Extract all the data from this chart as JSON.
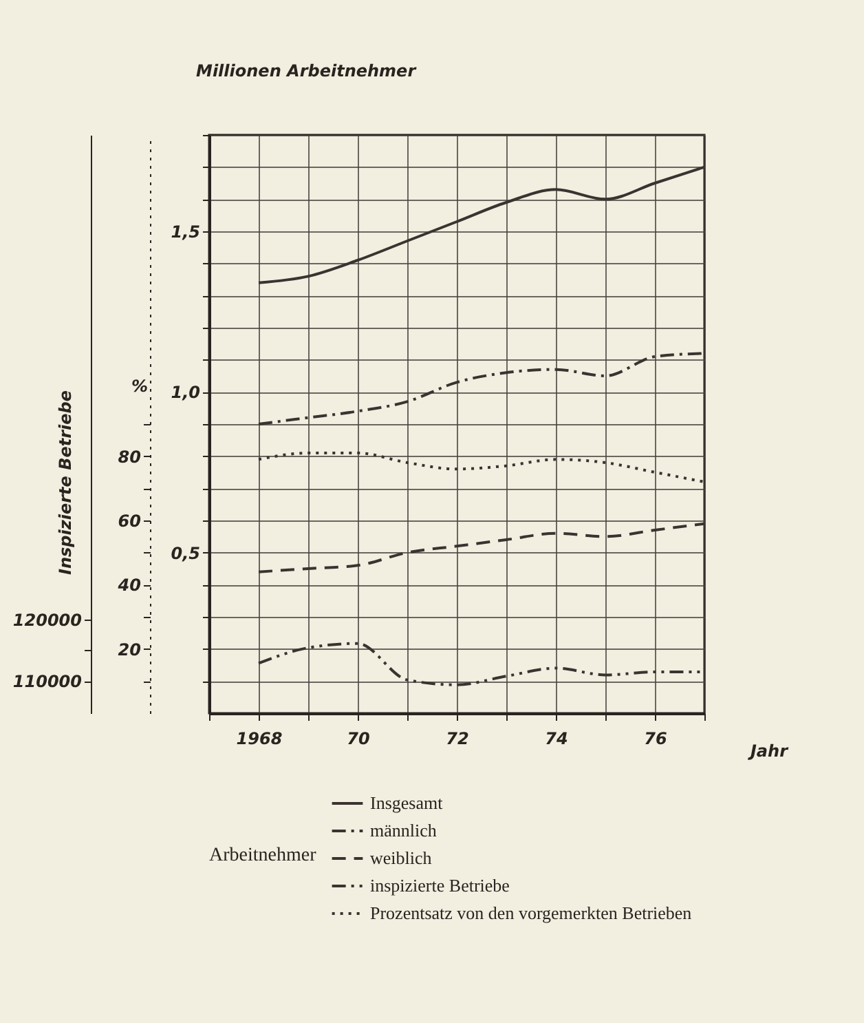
{
  "chart_data": {
    "type": "line",
    "xlabel": "Jahr",
    "ylabel": "Millionen Arbeitnehmer",
    "y2label": "%",
    "y3label": "Inspizierte Betriebe",
    "legend_title": "Arbeitnehmer",
    "legend": "bottom",
    "grid": true,
    "marker": "none",
    "x": [
      1968,
      1969,
      1970,
      1971,
      1972,
      1973,
      1974,
      1975,
      1976,
      1977
    ],
    "xlim": [
      1967,
      1977
    ],
    "xticks": [
      {
        "value": 1967,
        "label": null
      },
      {
        "value": 1968,
        "label": "1968"
      },
      {
        "value": 1969,
        "label": null
      },
      {
        "value": 1970,
        "label": "70"
      },
      {
        "value": 1971,
        "label": null
      },
      {
        "value": 1972,
        "label": "72"
      },
      {
        "value": 1973,
        "label": null
      },
      {
        "value": 1974,
        "label": "74"
      },
      {
        "value": 1975,
        "label": null
      },
      {
        "value": 1976,
        "label": "76"
      },
      {
        "value": 1977,
        "label": null
      }
    ],
    "ylim": [
      0,
      1.8
    ],
    "yticks": [
      {
        "value": 0.1,
        "label": null
      },
      {
        "value": 0.2,
        "label": null
      },
      {
        "value": 0.3,
        "label": null
      },
      {
        "value": 0.4,
        "label": null
      },
      {
        "value": 0.5,
        "label": "0,5"
      },
      {
        "value": 0.6,
        "label": null
      },
      {
        "value": 0.7,
        "label": null
      },
      {
        "value": 0.8,
        "label": null
      },
      {
        "value": 0.9,
        "label": null
      },
      {
        "value": 1.0,
        "label": "1,0"
      },
      {
        "value": 1.1,
        "label": null
      },
      {
        "value": 1.2,
        "label": null
      },
      {
        "value": 1.3,
        "label": null
      },
      {
        "value": 1.4,
        "label": null
      },
      {
        "value": 1.5,
        "label": "1,5"
      },
      {
        "value": 1.6,
        "label": null
      },
      {
        "value": 1.7,
        "label": null
      },
      {
        "value": 1.8,
        "label": null
      }
    ],
    "y2lim": [
      0,
      180
    ],
    "y2ticks": [
      {
        "value": 10,
        "label": null
      },
      20,
      {
        "value": 30,
        "label": null
      },
      40,
      {
        "value": 50,
        "label": null
      },
      60,
      {
        "value": 70,
        "label": null
      },
      80,
      {
        "value": 90,
        "label": null
      }
    ],
    "y3lim": [
      104800,
      198500
    ],
    "y3ticks": [
      110000,
      {
        "value": 115000,
        "label": null
      },
      120000
    ],
    "series": [
      {
        "name": "Insgesamt",
        "color": "#3a3330",
        "line_style": "solid",
        "values": [
          1.34,
          1.36,
          1.41,
          1.47,
          1.53,
          1.59,
          1.63,
          1.6,
          1.65,
          1.7
        ]
      },
      {
        "name": "männlich",
        "color": "#3a3330",
        "line_style": "dashdot",
        "values": [
          0.9,
          0.92,
          0.94,
          0.97,
          1.03,
          1.06,
          1.07,
          1.05,
          1.11,
          1.12
        ]
      },
      {
        "name": "weiblich",
        "color": "#3a3330",
        "line_style": "dashed",
        "values": [
          0.44,
          0.45,
          0.46,
          0.5,
          0.52,
          0.54,
          0.56,
          0.55,
          0.57,
          0.59
        ]
      },
      {
        "name": "inspizierte  Betriebe",
        "color": "#3a3330",
        "line_style": "dashdotdot",
        "axis": "y3",
        "values": [
          112900,
          115400,
          116100,
          110200,
          109400,
          110800,
          112100,
          111000,
          111500,
          111500
        ]
      },
      {
        "name": "Prozentsatz von den vorgemerkten Betrieben",
        "color": "#3a3330",
        "line_style": "dotted",
        "axis": "y2",
        "values": [
          79,
          81,
          81,
          78,
          76,
          77,
          79,
          78,
          75,
          72
        ]
      }
    ]
  }
}
